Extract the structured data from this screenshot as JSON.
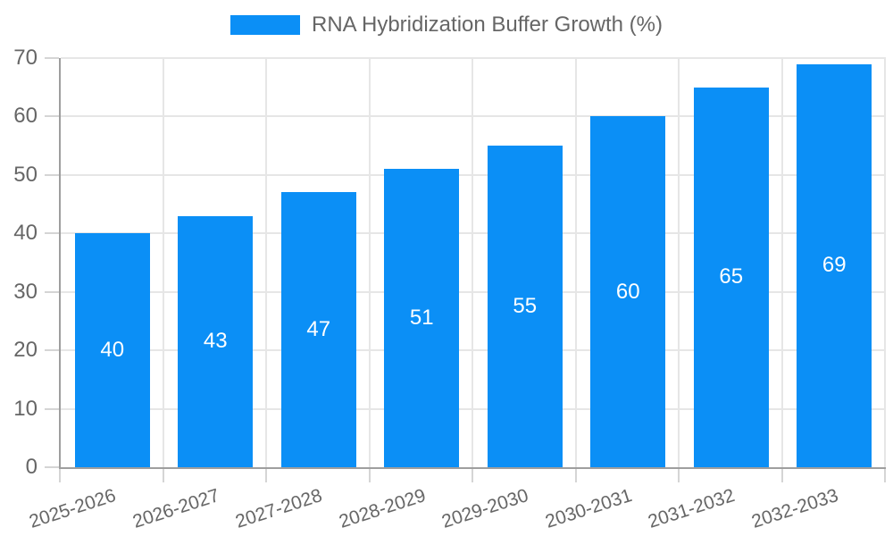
{
  "legend": {
    "label": "RNA Hybridization Buffer Growth (%)"
  },
  "chart_data": {
    "type": "bar",
    "title": "RNA Hybridization Buffer Growth (%)",
    "xlabel": "",
    "ylabel": "",
    "categories": [
      "2025-2026",
      "2026-2027",
      "2027-2028",
      "2028-2029",
      "2029-2030",
      "2030-2031",
      "2031-2032",
      "2032-2033"
    ],
    "series": [
      {
        "name": "RNA Hybridization Buffer Growth (%)",
        "values": [
          40,
          43,
          47,
          51,
          55,
          60,
          65,
          69
        ]
      }
    ],
    "bar_value_labels": [
      "40",
      "43",
      "47",
      "51",
      "55",
      "60",
      "65",
      "69"
    ],
    "ylim": [
      0,
      70
    ],
    "ytick_step": 10,
    "yticks": [
      0,
      10,
      20,
      30,
      40,
      50,
      60,
      70
    ],
    "grid": true,
    "legend_position": "top",
    "colors": {
      "bar": "#0B8FF6",
      "bar_label_text": "#FFFFFF",
      "axis_text": "#666666",
      "grid_line": "#E6E6E6",
      "tick_line": "#D5D5D5",
      "axis_line": "#9E9E9E",
      "background": "#FFFFFF"
    }
  }
}
